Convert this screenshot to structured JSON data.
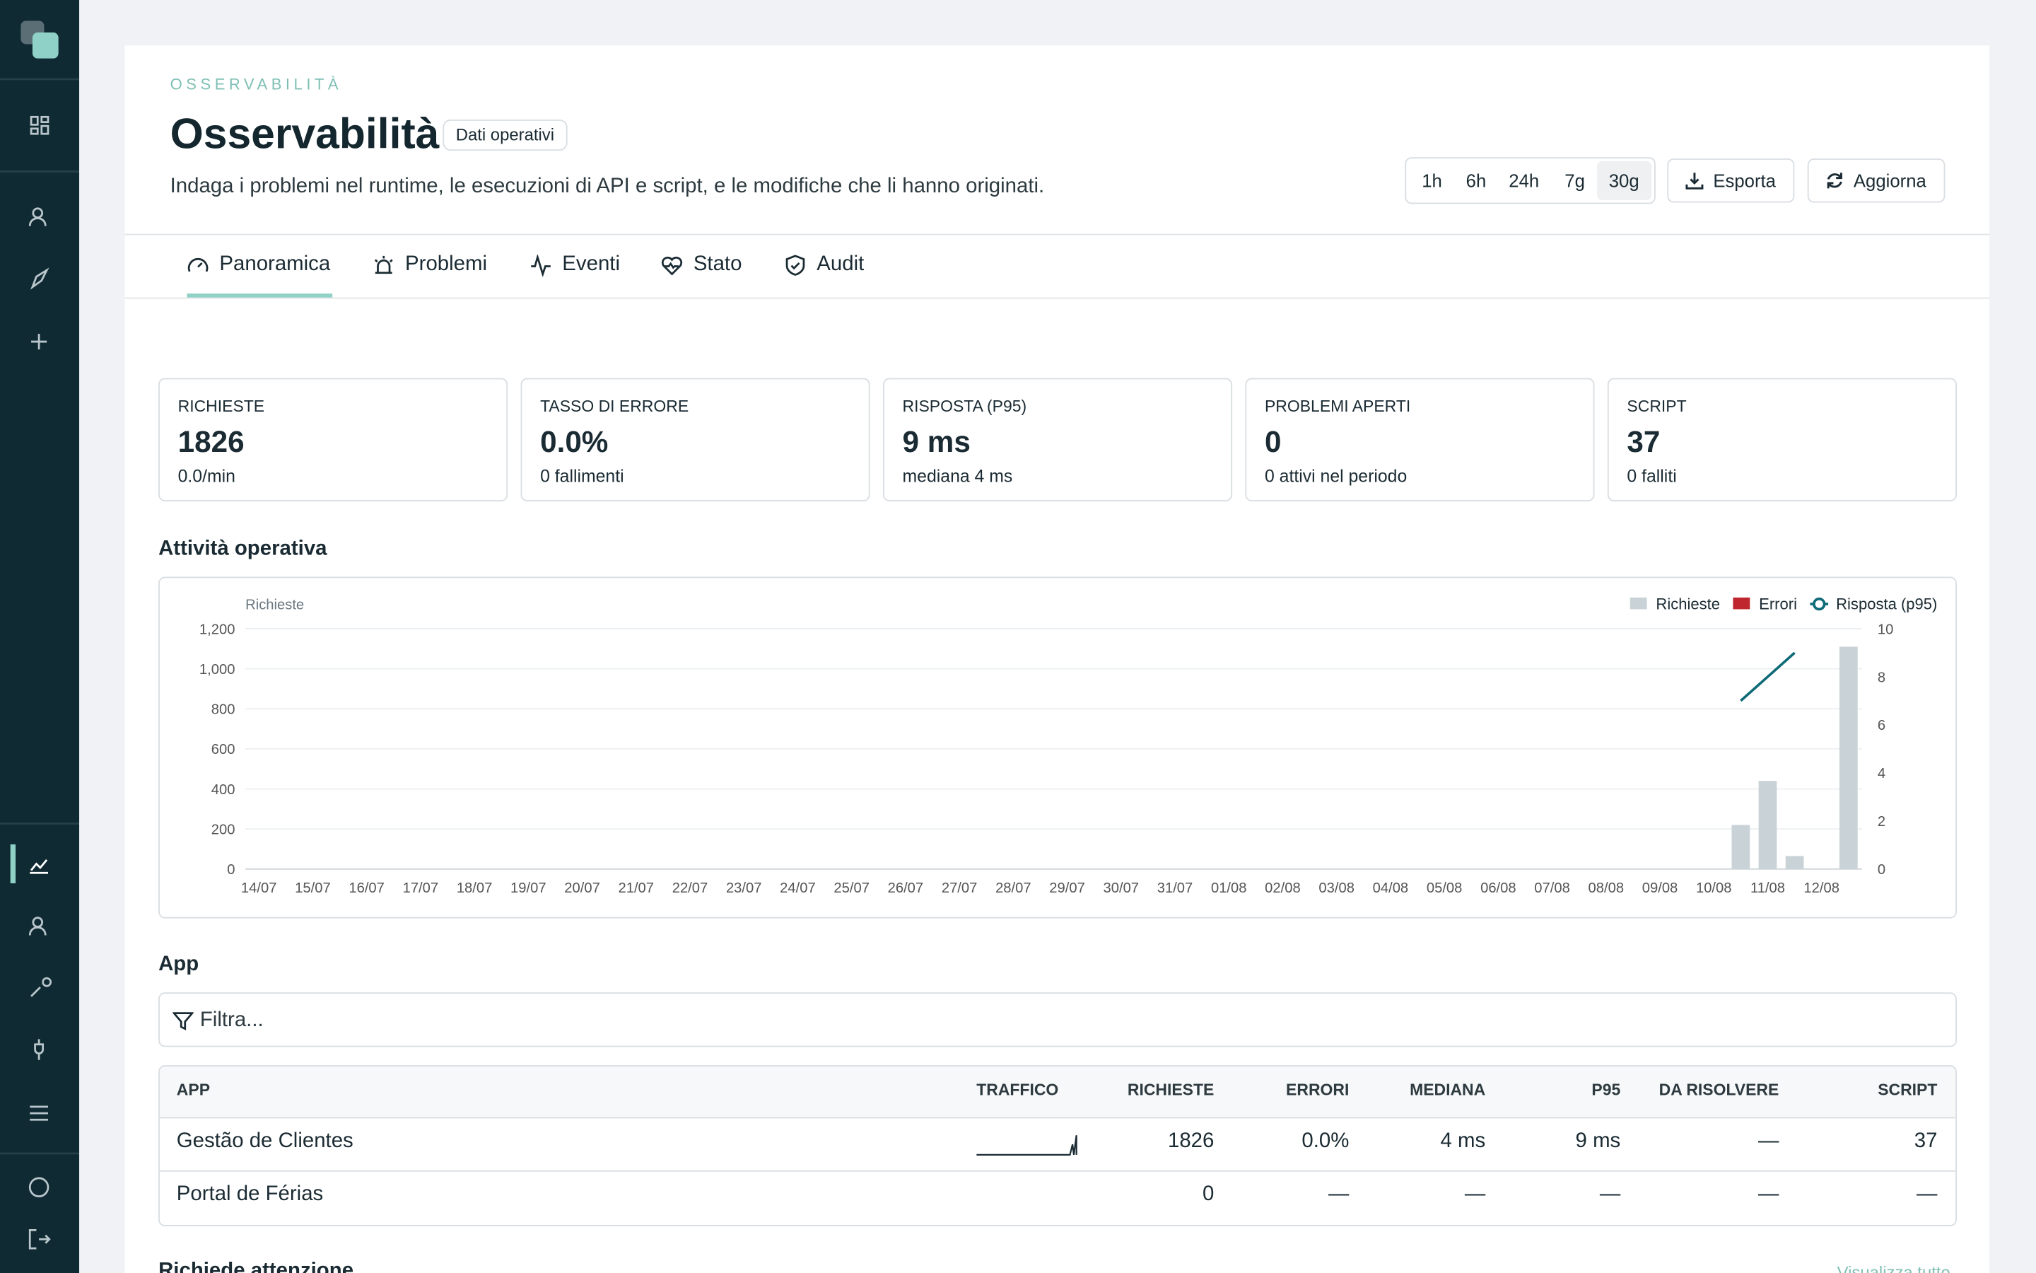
{
  "header": {
    "eyebrow": "OSSERVABILITÀ",
    "title": "Osservabilità",
    "badge": "Dati operativi",
    "description": "Indaga i problemi nel runtime, le esecuzioni di API e script, e le modifiche che li hanno originati.",
    "ranges": [
      "1h",
      "6h",
      "24h",
      "7g",
      "30g"
    ],
    "export": "Esporta",
    "refresh": "Aggiorna"
  },
  "tabs": [
    "Panoramica",
    "Problemi",
    "Eventi",
    "Stato",
    "Audit"
  ],
  "kpis": [
    {
      "label": "RICHIESTE",
      "value": "1826",
      "sub": "0.0/min"
    },
    {
      "label": "TASSO DI ERRORE",
      "value": "0.0%",
      "sub": "0 fallimenti"
    },
    {
      "label": "RISPOSTA (P95)",
      "value": "9 ms",
      "sub": "mediana 4 ms"
    },
    {
      "label": "PROBLEMI APERTI",
      "value": "0",
      "sub": "0 attivi nel periodo"
    },
    {
      "label": "SCRIPT",
      "value": "37",
      "sub": "0 falliti"
    }
  ],
  "activity_title": "Attività operativa",
  "chart_data": {
    "type": "bar",
    "y_label": "Richieste",
    "legend": "top-right",
    "grid": true,
    "categories": [
      "14/07",
      null,
      "15/07",
      null,
      "16/07",
      null,
      "17/07",
      null,
      "18/07",
      null,
      "19/07",
      null,
      "20/07",
      null,
      "21/07",
      null,
      "22/07",
      null,
      "23/07",
      null,
      "24/07",
      null,
      "25/07",
      null,
      "26/07",
      null,
      "27/07",
      null,
      "28/07",
      null,
      "29/07",
      null,
      "30/07",
      null,
      "31/07",
      null,
      "01/08",
      null,
      "02/08",
      null,
      "03/08",
      null,
      "04/08",
      null,
      "05/08",
      null,
      "06/08",
      null,
      "07/08",
      null,
      "08/08",
      null,
      "09/08",
      null,
      "10/08",
      null,
      "11/08",
      null,
      "12/08",
      null
    ],
    "series": [
      {
        "name": "Richieste",
        "type": "bar",
        "color": "#c9d3d7",
        "values": [
          0,
          0,
          0,
          0,
          0,
          0,
          0,
          0,
          0,
          0,
          0,
          0,
          0,
          0,
          0,
          0,
          0,
          0,
          0,
          0,
          0,
          0,
          0,
          0,
          0,
          0,
          0,
          0,
          0,
          0,
          0,
          0,
          0,
          0,
          0,
          0,
          0,
          0,
          0,
          0,
          0,
          0,
          0,
          0,
          0,
          0,
          0,
          0,
          0,
          0,
          0,
          0,
          0,
          0,
          0,
          220,
          440,
          65,
          0,
          1110
        ]
      },
      {
        "name": "Errori",
        "type": "bar",
        "color": "#c0262d",
        "values": [
          0,
          0,
          0,
          0,
          0,
          0,
          0,
          0,
          0,
          0,
          0,
          0,
          0,
          0,
          0,
          0,
          0,
          0,
          0,
          0,
          0,
          0,
          0,
          0,
          0,
          0,
          0,
          0,
          0,
          0,
          0,
          0,
          0,
          0,
          0,
          0,
          0,
          0,
          0,
          0,
          0,
          0,
          0,
          0,
          0,
          0,
          0,
          0,
          0,
          0,
          0,
          0,
          0,
          0,
          0,
          0,
          0,
          0,
          0,
          0
        ]
      },
      {
        "name": "Risposta (p95)",
        "type": "line",
        "axis": "y2",
        "color": "#0f6b78",
        "values": [
          null,
          null,
          null,
          null,
          null,
          null,
          null,
          null,
          null,
          null,
          null,
          null,
          null,
          null,
          null,
          null,
          null,
          null,
          null,
          null,
          null,
          null,
          null,
          null,
          null,
          null,
          null,
          null,
          null,
          null,
          null,
          null,
          null,
          null,
          null,
          null,
          null,
          null,
          null,
          null,
          null,
          null,
          null,
          null,
          null,
          null,
          null,
          null,
          null,
          null,
          null,
          null,
          null,
          null,
          null,
          7,
          8,
          9,
          null,
          null
        ]
      }
    ],
    "ylim": [
      0,
      1200
    ],
    "yticks": [
      0,
      200,
      400,
      600,
      800,
      {
        "value": 1000,
        "label": "1,000"
      },
      {
        "value": 1200,
        "label": "1,200"
      }
    ],
    "y2lim": [
      0,
      10
    ],
    "y2ticks": [
      0,
      2,
      4,
      6,
      8,
      10
    ]
  },
  "apps": {
    "title": "App",
    "filter_placeholder": "Filtra...",
    "columns": [
      "APP",
      "TRAFFICO",
      "RICHIESTE",
      "ERRORI",
      "MEDIANA",
      "P95",
      "DA RISOLVERE",
      "SCRIPT"
    ],
    "rows": [
      [
        "Gestão de Clientes",
        "1826",
        "0.0%",
        "4 ms",
        "9 ms",
        "—",
        "37"
      ],
      [
        "Portal de Férias",
        "0",
        "—",
        "—",
        "—",
        "—",
        "—"
      ]
    ]
  },
  "attention": {
    "title": "Richiede attenzione",
    "link": "Visualizza tutto"
  }
}
